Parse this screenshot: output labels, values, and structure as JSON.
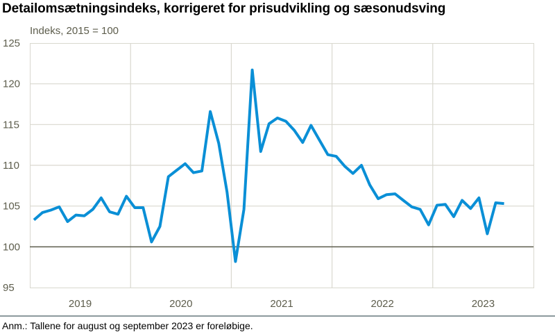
{
  "title": "Detailomsætningsindeks, korrigeret for prisudvikling og sæsonudsving",
  "unit_label": "Indeks, 2015 = 100",
  "note": "Anm.: Tallene for august og september 2023 er foreløbige.",
  "colors": {
    "series": "#0a8fd6",
    "grid": "#d9d8cf",
    "baseline": "#5b5b4b",
    "axis_text": "#5d5d4c",
    "separator": "#8c999d"
  },
  "chart_data": {
    "type": "line",
    "title": "Detailomsætningsindeks, korrigeret for prisudvikling og sæsonudsving",
    "xlabel": "",
    "ylabel": "Indeks, 2015 = 100",
    "ylim": [
      95,
      125
    ],
    "yticks": [
      95,
      100,
      105,
      110,
      115,
      120,
      125
    ],
    "xtick_labels": [
      "2019",
      "2020",
      "2021",
      "2022",
      "2023"
    ],
    "reference_line": 100,
    "grid": true,
    "legend": "none",
    "x": [
      "2019-01",
      "2019-02",
      "2019-03",
      "2019-04",
      "2019-05",
      "2019-06",
      "2019-07",
      "2019-08",
      "2019-09",
      "2019-10",
      "2019-11",
      "2019-12",
      "2020-01",
      "2020-02",
      "2020-03",
      "2020-04",
      "2020-05",
      "2020-06",
      "2020-07",
      "2020-08",
      "2020-09",
      "2020-10",
      "2020-11",
      "2020-12",
      "2021-01",
      "2021-02",
      "2021-03",
      "2021-04",
      "2021-05",
      "2021-06",
      "2021-07",
      "2021-08",
      "2021-09",
      "2021-10",
      "2021-11",
      "2021-12",
      "2022-01",
      "2022-02",
      "2022-03",
      "2022-04",
      "2022-05",
      "2022-06",
      "2022-07",
      "2022-08",
      "2022-09",
      "2022-10",
      "2022-11",
      "2022-12",
      "2023-01",
      "2023-02",
      "2023-03",
      "2023-04",
      "2023-05",
      "2023-06",
      "2023-07",
      "2023-08",
      "2023-09"
    ],
    "series": [
      {
        "name": "Detailomsætningsindeks",
        "values": [
          103.3,
          104.2,
          104.5,
          104.9,
          103.1,
          103.9,
          103.8,
          104.6,
          106.0,
          104.3,
          104.0,
          106.2,
          104.8,
          104.8,
          100.6,
          102.5,
          108.6,
          109.4,
          110.2,
          109.1,
          109.3,
          116.6,
          112.7,
          106.7,
          98.2,
          104.6,
          121.7,
          111.7,
          115.1,
          115.8,
          115.4,
          114.3,
          112.8,
          114.9,
          113.1,
          111.3,
          111.1,
          109.9,
          109.0,
          110.0,
          107.6,
          105.9,
          106.4,
          106.5,
          105.7,
          104.9,
          104.6,
          102.7,
          105.1,
          105.2,
          103.7,
          105.7,
          104.7,
          106.0,
          101.6,
          105.4,
          105.3
        ]
      }
    ]
  }
}
